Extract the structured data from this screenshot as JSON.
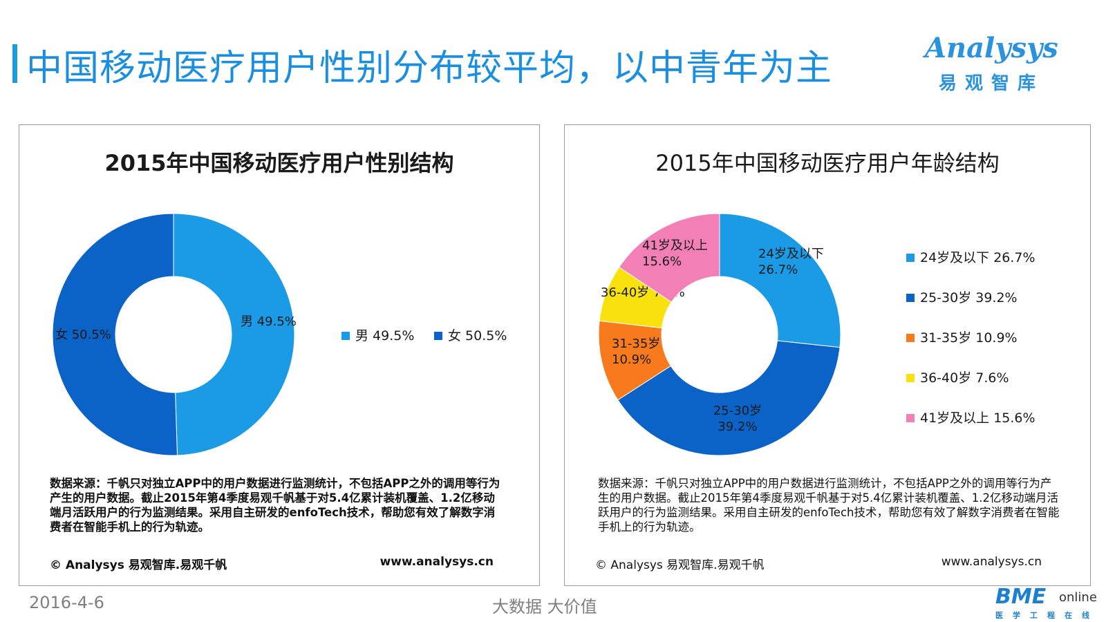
{
  "page": {
    "title": "中国移动医疗用户性别分布较平均，以中青年为主",
    "logo_word": "Analysys",
    "logo_cn": "易观智库",
    "date": "2016-4-6",
    "slogan": "大数据    大价值",
    "footer_logo": "BME",
    "footer_logo_suffix": "online",
    "footer_logo_cn": "医学工程在线"
  },
  "panels": [
    {
      "source": "数据来源：千帆只对独立APP中的用户数据进行监测统计，不包括APP之外的调用等行为产生的用户数据。截止2015年第4季度易观千帆基于对5.4亿累计装机覆盖、1.2亿移动端月活跃用户的行为监测结果。采用自主研发的enfoTech技术，帮助您有效了解数字消费者在智能手机上的行为轨迹。",
      "copyright": "© Analysys 易观智库.易观千帆",
      "site": "www.analysys.cn"
    },
    {
      "source": "数据来源：千帆只对独立APP中的用户数据进行监测统计，不包括APP之外的调用等行为产生的用户数据。截止2015年第4季度易观千帆基于对5.4亿累计装机覆盖、1.2亿移动端月活跃用户的行为监测结果。采用自主研发的enfoTech技术，帮助您有效了解数字消费者在智能手机上的行为轨迹。",
      "copyright": "© Analysys 易观智库.易观千帆",
      "site": "www.analysys.cn"
    }
  ],
  "chart_data": [
    {
      "type": "pie",
      "donut": true,
      "title": "2015年中国移动医疗用户性别结构",
      "legend_position": "right",
      "slices": [
        {
          "label": "男",
          "value": 49.5,
          "display": "49.5%",
          "color": "#1b9be6"
        },
        {
          "label": "女",
          "value": 50.5,
          "display": "50.5%",
          "color": "#0b63c8"
        }
      ]
    },
    {
      "type": "pie",
      "donut": true,
      "title": "2015年中国移动医疗用户年龄结构",
      "legend_position": "right",
      "slices": [
        {
          "label": "24岁及以下",
          "value": 26.7,
          "display": "26.7%",
          "color": "#1b9be6"
        },
        {
          "label": "25-30岁",
          "value": 39.2,
          "display": "39.2%",
          "color": "#0b63c8"
        },
        {
          "label": "31-35岁",
          "value": 10.9,
          "display": "10.9%",
          "color": "#f77a1c"
        },
        {
          "label": "36-40岁",
          "value": 7.6,
          "display": "7.6%",
          "color": "#f8e10c"
        },
        {
          "label": "41岁及以上",
          "value": 15.6,
          "display": "15.6%",
          "color": "#f37fb7"
        }
      ]
    }
  ]
}
